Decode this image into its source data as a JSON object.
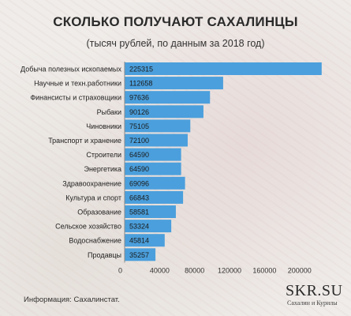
{
  "chart_data": {
    "type": "bar",
    "orientation": "horizontal",
    "title": "СКОЛЬКО ПОЛУЧАЮТ САХАЛИНЦЫ",
    "subtitle": "(тысяч рублей, по данным за 2018 год)",
    "categories": [
      "Добыча полезных ископаемых",
      "Научные и техн.работники",
      "Финансисты и страховщики",
      "Рыбаки",
      "Чиновники",
      "Транспорт и хранение",
      "Строители",
      "Энергетика",
      "Здравоохранение",
      "Культура и спорт",
      "Образование",
      "Сельское хозяйство",
      "Водоснабжение",
      "Продавцы"
    ],
    "values": [
      225315,
      112658,
      97636,
      90126,
      75105,
      72100,
      64590,
      64590,
      69096,
      66843,
      58581,
      53324,
      45814,
      35257
    ],
    "xlim": [
      0,
      230000
    ],
    "xticks": [
      0,
      40000,
      80000,
      120000,
      160000,
      200000
    ],
    "grid": false,
    "bar_color": "#4b9fdc"
  },
  "source": "Информация: Сахалинстат.",
  "logo": {
    "name": "SKR.SU",
    "tagline": "Сахалин и Курилы"
  }
}
